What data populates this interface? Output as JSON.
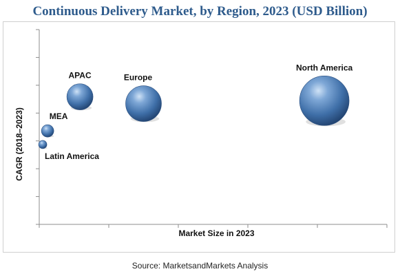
{
  "title": "Continuous Delivery Market, by Region, 2023 (USD Billion)",
  "source": "Source: MarketsandMarkets Analysis",
  "chart_data": {
    "type": "bubble",
    "title": "Continuous Delivery Market, by Region, 2023 (USD Billion)",
    "xlabel": "Market Size in 2023",
    "ylabel": "CAGR (2018–2023)",
    "x_ticks_count": 5,
    "y_ticks_count": 7,
    "grid": false,
    "legend": "none",
    "x_range": [
      0,
      10
    ],
    "y_range": [
      0,
      10
    ],
    "points": [
      {
        "label": "North America",
        "x": 8.2,
        "y": 6.35,
        "size": 36
      },
      {
        "label": "Europe",
        "x": 3.0,
        "y": 6.2,
        "size": 26
      },
      {
        "label": "APAC",
        "x": 1.17,
        "y": 6.55,
        "size": 19
      },
      {
        "label": "MEA",
        "x": 0.24,
        "y": 4.8,
        "size": 9
      },
      {
        "label": "Latin America",
        "x": 0.1,
        "y": 4.1,
        "size": 6
      }
    ],
    "bubble_color": "#3f74b1"
  }
}
